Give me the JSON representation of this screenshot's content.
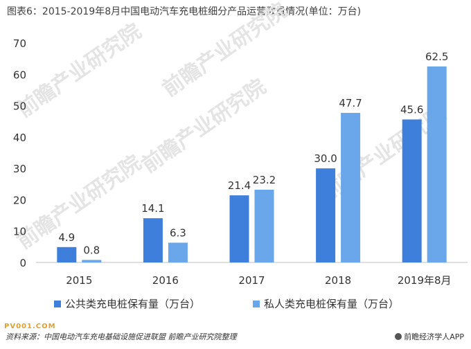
{
  "header": {
    "title": "图表6：2015-2019年8月中国电动汽车充电桩细分产品运营数量情况(单位：万台)"
  },
  "chart_data": {
    "type": "bar",
    "categories": [
      "2015",
      "2016",
      "2017",
      "2018",
      "2019年8月"
    ],
    "series": [
      {
        "name": "公共类充电桩保有量（万台）",
        "values": [
          4.9,
          14.1,
          21.4,
          30.0,
          45.6
        ],
        "color": "#3f7fdc"
      },
      {
        "name": "私人类充电桩保有量（万台）",
        "values": [
          0.8,
          6.3,
          23.2,
          47.7,
          62.5
        ],
        "color": "#6aa6ea"
      }
    ],
    "value_labels": [
      [
        "4.9",
        "14.1",
        "21.4",
        "30.0",
        "45.6"
      ],
      [
        "0.8",
        "6.3",
        "23.2",
        "47.7",
        "62.5"
      ]
    ],
    "ylim": [
      0,
      70
    ],
    "yticks": [
      "0",
      "10",
      "20",
      "30",
      "40",
      "50",
      "60",
      "70"
    ],
    "grid": false,
    "legend_position": "bottom"
  },
  "footer": {
    "source": "资料来源：中国电动汽车充电基础设施促进联盟 前瞻产业研究院整理",
    "brand": "前瞻经济学人APP",
    "tag": "PV001.COM"
  },
  "watermark": {
    "text": "前瞻产业研究院",
    "color": "#e4e4e4"
  }
}
